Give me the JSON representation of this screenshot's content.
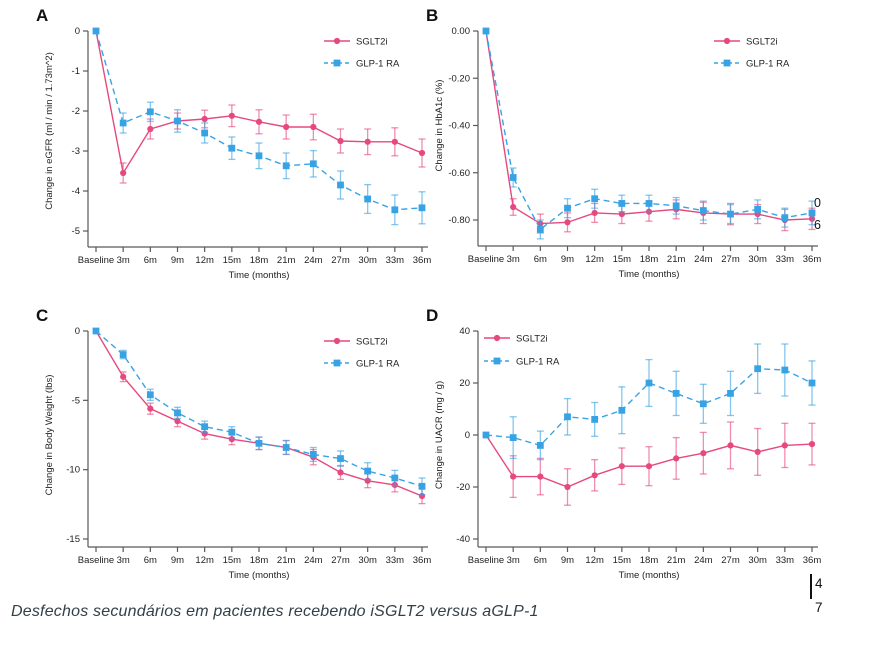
{
  "caption": "Desfechos secundários em pacientes recebendo iSGLT2 versus aGLP-1",
  "edge_artifacts": {
    "clipped_digit_1": "0",
    "clipped_digit_2": "6",
    "page_digit_1": "4",
    "page_digit_2": "7"
  },
  "colors": {
    "sglt2i": "#e54980",
    "glp1_ra": "#38a3e4",
    "axis": "#58595b",
    "text": "#222222",
    "caption_text": "#334049"
  },
  "chart_data": [
    {
      "panel": "A",
      "type": "line",
      "ylabel": "Change in eGFR (ml / min / 1.73m^2)",
      "xlabel": "Time (months)",
      "categories": [
        "Baseline",
        "3m",
        "6m",
        "9m",
        "12m",
        "15m",
        "18m",
        "21m",
        "24m",
        "27m",
        "30m",
        "33m",
        "36m"
      ],
      "ylim": [
        -5,
        0
      ],
      "yticks": [
        0,
        -1,
        -2,
        -3,
        -4,
        -5
      ],
      "ytick_labels": [
        "0",
        "-1",
        "-2",
        "-3",
        "-4",
        "-5"
      ],
      "grid": false,
      "legend_position": "top-right",
      "series": [
        {
          "name": "SGLT2i",
          "color": "#e54980",
          "marker": "circle",
          "line_style": "solid",
          "values": [
            0,
            -3.55,
            -2.45,
            -2.25,
            -2.2,
            -2.12,
            -2.27,
            -2.4,
            -2.4,
            -2.75,
            -2.77,
            -2.77,
            -3.05
          ],
          "errors": [
            0,
            0.25,
            0.25,
            0.2,
            0.22,
            0.27,
            0.3,
            0.3,
            0.32,
            0.3,
            0.32,
            0.35,
            0.35
          ]
        },
        {
          "name": "GLP-1 RA",
          "color": "#38a3e4",
          "marker": "square",
          "line_style": "dashed",
          "values": [
            0,
            -2.3,
            -2.02,
            -2.25,
            -2.55,
            -2.93,
            -3.12,
            -3.37,
            -3.32,
            -3.85,
            -4.2,
            -4.47,
            -4.42
          ],
          "errors": [
            0,
            0.25,
            0.24,
            0.28,
            0.25,
            0.28,
            0.32,
            0.32,
            0.33,
            0.35,
            0.36,
            0.37,
            0.4
          ]
        }
      ]
    },
    {
      "panel": "B",
      "type": "line",
      "ylabel": "Change in HbA1c (%)",
      "xlabel": "Time (months)",
      "categories": [
        "Baseline",
        "3m",
        "6m",
        "9m",
        "12m",
        "15m",
        "18m",
        "21m",
        "24m",
        "27m",
        "30m",
        "33m",
        "36m"
      ],
      "ylim": [
        -0.8,
        0
      ],
      "yticks": [
        0,
        -0.2,
        -0.4,
        -0.6,
        -0.8
      ],
      "ytick_labels": [
        "0.00",
        "-0.20",
        "-0.40",
        "-0.60",
        "-0.80"
      ],
      "grid": false,
      "legend_position": "top-right",
      "series": [
        {
          "name": "SGLT2i",
          "color": "#e54980",
          "marker": "circle",
          "line_style": "solid",
          "values": [
            0,
            -0.745,
            -0.815,
            -0.81,
            -0.77,
            -0.775,
            -0.765,
            -0.755,
            -0.77,
            -0.775,
            -0.775,
            -0.8,
            -0.795
          ],
          "errors": [
            0,
            0.035,
            0.04,
            0.04,
            0.04,
            0.04,
            0.04,
            0.04,
            0.045,
            0.045,
            0.04,
            0.045,
            0.045
          ]
        },
        {
          "name": "GLP-1 RA",
          "color": "#38a3e4",
          "marker": "square",
          "line_style": "dashed",
          "values": [
            0,
            -0.62,
            -0.84,
            -0.75,
            -0.71,
            -0.73,
            -0.73,
            -0.74,
            -0.76,
            -0.775,
            -0.755,
            -0.79,
            -0.77
          ],
          "errors": [
            0,
            0.04,
            0.04,
            0.04,
            0.04,
            0.035,
            0.035,
            0.035,
            0.04,
            0.04,
            0.04,
            0.04,
            0.05
          ]
        }
      ]
    },
    {
      "panel": "C",
      "type": "line",
      "ylabel": "Change in Body Weight (lbs)",
      "xlabel": "Time (months)",
      "categories": [
        "Baseline",
        "3m",
        "6m",
        "9m",
        "12m",
        "15m",
        "18m",
        "21m",
        "24m",
        "27m",
        "30m",
        "33m",
        "36m"
      ],
      "ylim": [
        -15,
        0
      ],
      "yticks": [
        0,
        -5,
        -10,
        -15
      ],
      "ytick_labels": [
        "0",
        "-5",
        "-10",
        "-15"
      ],
      "grid": false,
      "legend_position": "top-right",
      "series": [
        {
          "name": "SGLT2i",
          "color": "#e54980",
          "marker": "circle",
          "line_style": "solid",
          "values": [
            0,
            -3.3,
            -5.6,
            -6.5,
            -7.4,
            -7.8,
            -8.1,
            -8.4,
            -9.1,
            -10.2,
            -10.8,
            -11.1,
            -11.9
          ],
          "errors": [
            0,
            0.35,
            0.4,
            0.4,
            0.4,
            0.4,
            0.45,
            0.5,
            0.55,
            0.5,
            0.5,
            0.5,
            0.55
          ]
        },
        {
          "name": "GLP-1 RA",
          "color": "#38a3e4",
          "marker": "square",
          "line_style": "dashed",
          "values": [
            0,
            -1.7,
            -4.6,
            -5.9,
            -6.9,
            -7.3,
            -8.1,
            -8.4,
            -8.9,
            -9.2,
            -10.1,
            -10.6,
            -11.2
          ],
          "errors": [
            0,
            0.3,
            0.4,
            0.4,
            0.4,
            0.4,
            0.45,
            0.5,
            0.5,
            0.55,
            0.6,
            0.55,
            0.6
          ]
        }
      ]
    },
    {
      "panel": "D",
      "type": "line",
      "ylabel": "Change in UACR (mg / g)",
      "xlabel": "Time (months)",
      "categories": [
        "Baseline",
        "3m",
        "6m",
        "9m",
        "12m",
        "15m",
        "18m",
        "21m",
        "24m",
        "27m",
        "30m",
        "33m",
        "36m"
      ],
      "ylim": [
        -40,
        40
      ],
      "yticks": [
        40,
        20,
        0,
        -20,
        -40
      ],
      "ytick_labels": [
        "40",
        "20",
        "0",
        "-20",
        "-40"
      ],
      "grid": false,
      "legend_position": "top-left",
      "series": [
        {
          "name": "SGLT2i",
          "color": "#e54980",
          "marker": "circle",
          "line_style": "solid",
          "values": [
            0,
            -16,
            -16,
            -20,
            -15.5,
            -12,
            -12,
            -9,
            -7,
            -4,
            -6.5,
            -4,
            -3.5
          ],
          "errors": [
            0,
            8,
            7,
            7,
            6,
            7,
            7.5,
            8,
            8,
            9,
            9,
            8.5,
            8
          ]
        },
        {
          "name": "GLP-1 RA",
          "color": "#38a3e4",
          "marker": "square",
          "line_style": "dashed",
          "values": [
            0,
            -1,
            -4,
            7,
            6,
            9.5,
            20,
            16,
            12,
            16,
            25.5,
            25,
            20
          ],
          "errors": [
            0,
            8,
            5.5,
            7,
            6.5,
            9,
            9,
            8.5,
            7.5,
            8.5,
            9.5,
            10,
            8.5
          ]
        }
      ]
    }
  ]
}
